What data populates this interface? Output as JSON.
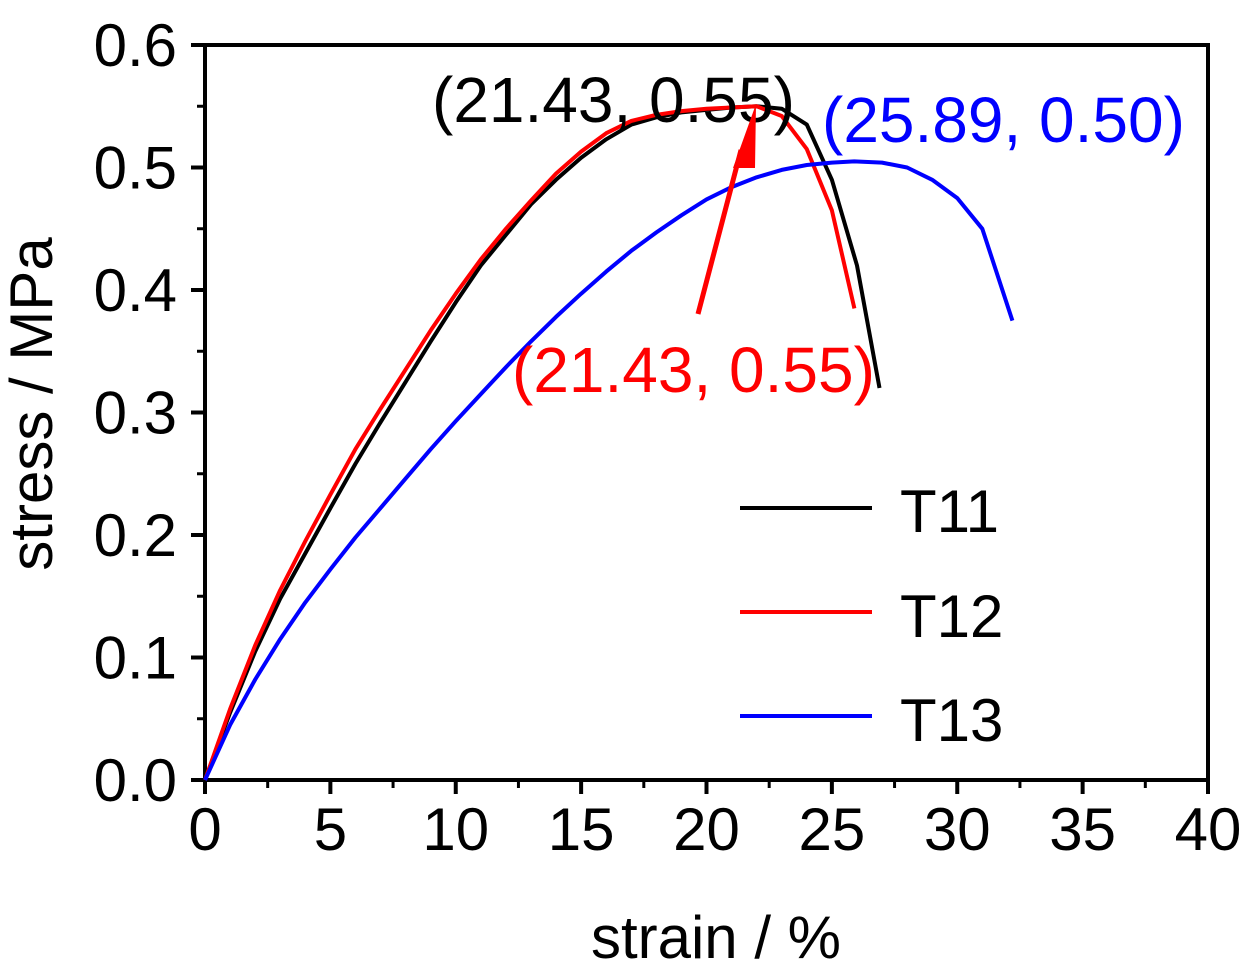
{
  "chart_data": {
    "type": "line",
    "title": "",
    "xlabel": "strain / %",
    "ylabel": "stress / MPa",
    "xlim": [
      0,
      40
    ],
    "ylim": [
      0,
      0.6
    ],
    "xticks": [
      0,
      5,
      10,
      15,
      20,
      25,
      30,
      35,
      40
    ],
    "xtick_labels": [
      "0",
      "5",
      "10",
      "15",
      "20",
      "25",
      "30",
      "35",
      "40"
    ],
    "yticks": [
      0,
      0.1,
      0.2,
      0.3,
      0.4,
      0.5,
      0.6
    ],
    "ytick_labels": [
      "0.0",
      "0.1",
      "0.2",
      "0.3",
      "0.4",
      "0.5",
      "0.6"
    ],
    "grid": false,
    "legend_position": "bottom-right",
    "series": [
      {
        "name": "T11",
        "color": "#000000",
        "points": [
          [
            0,
            0
          ],
          [
            1,
            0.055
          ],
          [
            2,
            0.105
          ],
          [
            3,
            0.148
          ],
          [
            4,
            0.185
          ],
          [
            5,
            0.222
          ],
          [
            6,
            0.258
          ],
          [
            7,
            0.292
          ],
          [
            8,
            0.325
          ],
          [
            9,
            0.358
          ],
          [
            10,
            0.39
          ],
          [
            11,
            0.42
          ],
          [
            12,
            0.445
          ],
          [
            13,
            0.47
          ],
          [
            14,
            0.49
          ],
          [
            15,
            0.508
          ],
          [
            16,
            0.523
          ],
          [
            17,
            0.535
          ],
          [
            18,
            0.541
          ],
          [
            19,
            0.545
          ],
          [
            20,
            0.547
          ],
          [
            21,
            0.549
          ],
          [
            22,
            0.55
          ],
          [
            23,
            0.548
          ],
          [
            24,
            0.535
          ],
          [
            25,
            0.49
          ],
          [
            26,
            0.42
          ],
          [
            26.9,
            0.32
          ]
        ]
      },
      {
        "name": "T12",
        "color": "#ff0000",
        "points": [
          [
            0,
            0
          ],
          [
            1,
            0.058
          ],
          [
            2,
            0.11
          ],
          [
            3,
            0.155
          ],
          [
            4,
            0.195
          ],
          [
            5,
            0.233
          ],
          [
            6,
            0.27
          ],
          [
            7,
            0.303
          ],
          [
            8,
            0.335
          ],
          [
            9,
            0.367
          ],
          [
            10,
            0.397
          ],
          [
            11,
            0.425
          ],
          [
            12,
            0.45
          ],
          [
            13,
            0.473
          ],
          [
            14,
            0.495
          ],
          [
            15,
            0.513
          ],
          [
            16,
            0.528
          ],
          [
            17,
            0.538
          ],
          [
            18,
            0.543
          ],
          [
            19,
            0.546
          ],
          [
            20,
            0.548
          ],
          [
            21,
            0.549
          ],
          [
            22,
            0.55
          ],
          [
            23,
            0.542
          ],
          [
            24,
            0.515
          ],
          [
            25,
            0.465
          ],
          [
            25.9,
            0.385
          ]
        ]
      },
      {
        "name": "T13",
        "color": "#0000ff",
        "points": [
          [
            0,
            0
          ],
          [
            1,
            0.045
          ],
          [
            2,
            0.082
          ],
          [
            3,
            0.115
          ],
          [
            4,
            0.145
          ],
          [
            5,
            0.172
          ],
          [
            6,
            0.198
          ],
          [
            7,
            0.222
          ],
          [
            8,
            0.246
          ],
          [
            9,
            0.27
          ],
          [
            10,
            0.293
          ],
          [
            11,
            0.315
          ],
          [
            12,
            0.337
          ],
          [
            13,
            0.358
          ],
          [
            14,
            0.378
          ],
          [
            15,
            0.397
          ],
          [
            16,
            0.415
          ],
          [
            17,
            0.432
          ],
          [
            18,
            0.447
          ],
          [
            19,
            0.461
          ],
          [
            20,
            0.474
          ],
          [
            21,
            0.484
          ],
          [
            22,
            0.492
          ],
          [
            23,
            0.498
          ],
          [
            24,
            0.502
          ],
          [
            25,
            0.504
          ],
          [
            25.89,
            0.505
          ],
          [
            27,
            0.504
          ],
          [
            28,
            0.5
          ],
          [
            29,
            0.49
          ],
          [
            30,
            0.475
          ],
          [
            31,
            0.45
          ],
          [
            32.2,
            0.375
          ]
        ]
      }
    ],
    "annotations": [
      {
        "text": "(21.43, 0.55)",
        "color": "#000000"
      },
      {
        "text": "(21.43, 0.55)",
        "color": "#ff0000"
      },
      {
        "text": "(25.89, 0.50)",
        "color": "#0000ff"
      }
    ]
  }
}
